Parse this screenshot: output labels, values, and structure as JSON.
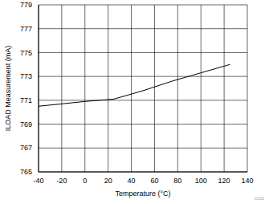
{
  "chart_data": {
    "type": "line",
    "x_label": "Temperature (°C)",
    "y_label": "ILOAD Measurement (mA)",
    "annotation": "C010",
    "x": [
      -40,
      -20,
      0,
      25,
      50,
      75,
      100,
      125
    ],
    "values": [
      770.5,
      770.7,
      770.9,
      771.1,
      771.8,
      772.6,
      773.3,
      774.0
    ],
    "color": "#000000",
    "xlim": [
      -40,
      140
    ],
    "ylim": [
      765,
      779
    ],
    "xticks": [
      -40,
      -20,
      0,
      20,
      40,
      60,
      80,
      100,
      120,
      140
    ],
    "yticks": [
      765,
      767,
      769,
      771,
      773,
      775,
      777,
      779
    ],
    "grid": true
  }
}
